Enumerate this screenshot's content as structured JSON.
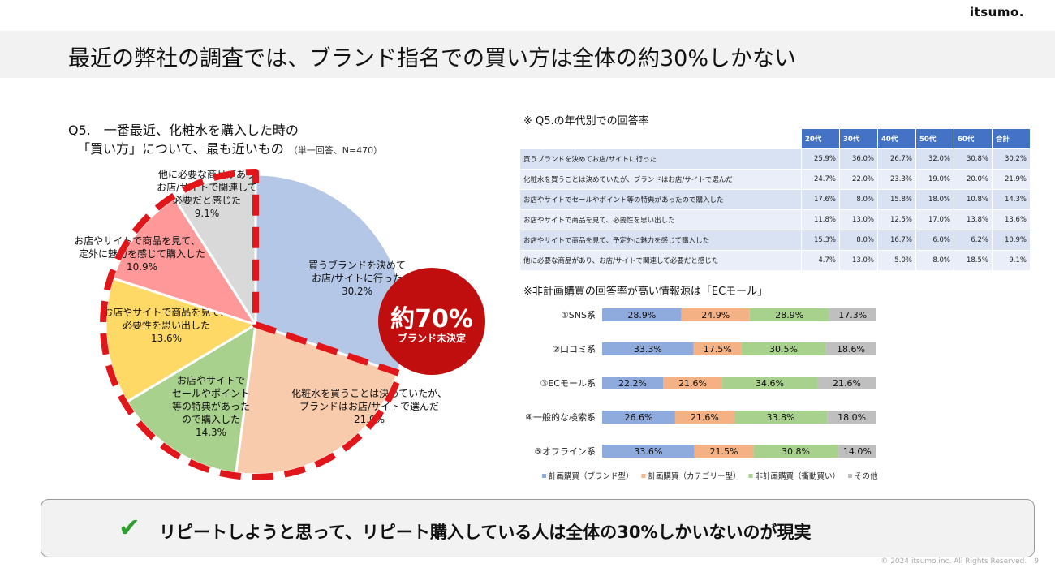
{
  "logo": "itsumo.",
  "title": "最近の弊社の調査では、ブランド指名での買い方は全体の約30%しかない",
  "question": {
    "line1": "Q5.　一番最近、化粧水を購入した時の",
    "line2": "「買い方」について、最も近いもの",
    "note": "（単一回答、N=470）"
  },
  "badge": {
    "value": "約70%",
    "label": "ブランド未決定"
  },
  "table": {
    "title": "※ Q5.の年代別での回答率",
    "headers": [
      "20代",
      "30代",
      "40代",
      "50代",
      "60代",
      "合計"
    ],
    "rows": [
      {
        "label": "買うブランドを決めてお店/サイトに行った",
        "values": [
          "25.9%",
          "36.0%",
          "26.7%",
          "32.0%",
          "30.8%",
          "30.2%"
        ]
      },
      {
        "label": "化粧水を買うことは決めていたが、ブランドはお店/サイトで選んだ",
        "values": [
          "24.7%",
          "22.0%",
          "23.3%",
          "19.0%",
          "20.0%",
          "21.9%"
        ]
      },
      {
        "label": "お店やサイトでセールやポイント等の特典があったので購入した",
        "values": [
          "17.6%",
          "8.0%",
          "15.8%",
          "18.0%",
          "10.8%",
          "14.3%"
        ]
      },
      {
        "label": "お店やサイトで商品を見て、必要性を思い出した",
        "values": [
          "11.8%",
          "13.0%",
          "12.5%",
          "17.0%",
          "13.8%",
          "13.6%"
        ]
      },
      {
        "label": "お店やサイトで商品を見て、予定外に魅力を感じて購入した",
        "values": [
          "15.3%",
          "8.0%",
          "16.7%",
          "6.0%",
          "6.2%",
          "10.9%"
        ]
      },
      {
        "label": "他に必要な商品があり、お店/サイトで関連して必要だと感じた",
        "values": [
          "4.7%",
          "13.0%",
          "5.0%",
          "8.0%",
          "18.5%",
          "9.1%"
        ]
      }
    ]
  },
  "bar_title": "※非計画購買の回答率が高い情報源は「ECモール」",
  "conclusion": {
    "check": "✔",
    "text": "リピートしようと思って、リピート購入している人は全体の30%しかいないのが現実"
  },
  "footer": "© 2024 itsumo.inc. All Rights Reserved.　9",
  "chart_data": [
    {
      "type": "pie",
      "slices": [
        {
          "label": "買うブランドを決めて\nお店/サイトに行った",
          "value": 30.2,
          "color": "#b4c7e7"
        },
        {
          "label": "化粧水を買うことは決めていたが、\nブランドはお店/サイトで選んだ",
          "value": 21.9,
          "color": "#f8cbad"
        },
        {
          "label": "お店やサイトで\nセールやポイント\n等の特典があった\nので購入した",
          "value": 14.3,
          "color": "#a9d18e"
        },
        {
          "label": "お店やサイトで商品を見て、\n必要性を思い出した",
          "value": 13.6,
          "color": "#ffd966"
        },
        {
          "label": "お店やサイトで商品を見て、予\n定外に魅力を感じて購入した",
          "value": 10.9,
          "color": "#ff9999"
        },
        {
          "label": "他に必要な商品があり\nお店/サイトで関連して\n必要だと感じた",
          "value": 9.1,
          "color": "#d9d9d9"
        }
      ],
      "highlight": "dashed red outline around unplanned purchases (~70%)"
    },
    {
      "type": "bar",
      "stacked": true,
      "orientation": "horizontal",
      "categories": [
        "①SNS系",
        "②口コミ系",
        "③ECモール系",
        "④一般的な検索系",
        "⑤オフライン系"
      ],
      "series": [
        {
          "name": "計画購買（ブランド型）",
          "color": "#8faadc",
          "values": [
            28.9,
            33.3,
            22.2,
            26.6,
            33.6
          ]
        },
        {
          "name": "計画購買（カテゴリー型）",
          "color": "#f4b183",
          "values": [
            24.9,
            17.5,
            21.6,
            21.6,
            21.5
          ]
        },
        {
          "name": "非計画購買（衝動買い）",
          "color": "#a9d18e",
          "values": [
            28.9,
            30.5,
            34.6,
            33.8,
            30.8
          ]
        },
        {
          "name": "その他",
          "color": "#bfbfbf",
          "values": [
            17.3,
            18.6,
            21.6,
            18.0,
            14.0
          ]
        }
      ],
      "legend": "bottom"
    }
  ]
}
